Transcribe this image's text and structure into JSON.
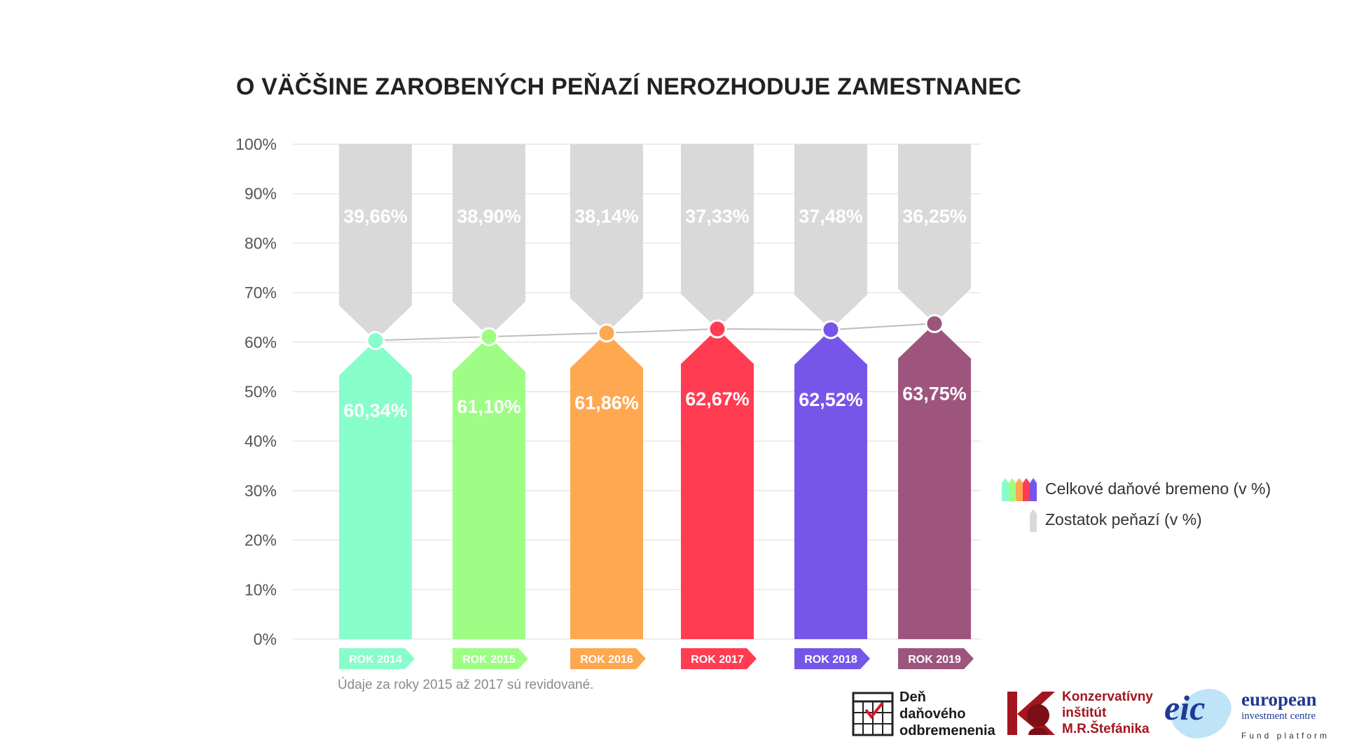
{
  "title": "O VÄČŠINE ZAROBENÝCH PEŇAZÍ NEROZHODUJE ZAMESTNANEC",
  "footnote": "Údaje za roky 2015 až 2017 sú revidované.",
  "legend": {
    "tax_label": "Celkové daňové bremeno (v %)",
    "rest_label": "Zostatok peňazí (v %)"
  },
  "logos": {
    "den_lines": [
      "Deň",
      "daňového",
      "odbremenenia"
    ],
    "kimrs_lines": [
      "Konzervatívny",
      "inštitút",
      "M.R.Štefánika"
    ],
    "eic_mark": "eic",
    "eic_line1": "european",
    "eic_line2": "investment centre",
    "eic_line3": "Fund platform"
  },
  "colors": {
    "grey_bar": "#d9d9d9",
    "grid": "#e6e6e6",
    "line": "#bdbdbd"
  },
  "chart_data": {
    "type": "bar",
    "stacked": true,
    "categories": [
      "ROK 2014",
      "ROK 2015",
      "ROK 2016",
      "ROK 2017",
      "ROK 2018",
      "ROK 2019"
    ],
    "series": [
      {
        "name": "Celkové daňové bremeno (v %)",
        "values": [
          60.34,
          61.1,
          61.86,
          62.67,
          62.52,
          63.75
        ],
        "labels": [
          "60,34%",
          "61,10%",
          "61,86%",
          "62,67%",
          "62,52%",
          "63,75%"
        ],
        "colors": [
          "#88fdcc",
          "#9efd84",
          "#ffa852",
          "#ff3c52",
          "#7656e9",
          "#9d557d"
        ]
      },
      {
        "name": "Zostatok peňazí (v %)",
        "values": [
          39.66,
          38.9,
          38.14,
          37.33,
          37.48,
          36.25
        ],
        "labels": [
          "39,66%",
          "38,90%",
          "38,14%",
          "37,33%",
          "37,48%",
          "36,25%"
        ],
        "color": "#d9d9d9"
      }
    ],
    "y_ticks": [
      "0%",
      "10%",
      "20%",
      "30%",
      "40%",
      "50%",
      "60%",
      "70%",
      "80%",
      "90%",
      "100%"
    ],
    "ylim": [
      0,
      100
    ],
    "grid": true,
    "legend_position": "right"
  }
}
